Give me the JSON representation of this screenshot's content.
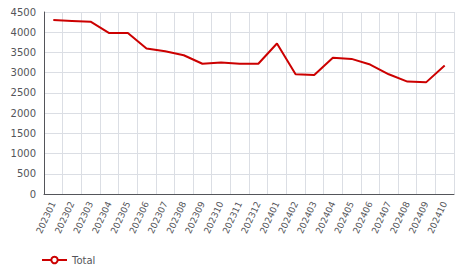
{
  "chart_data": {
    "type": "line",
    "categories": [
      "202301",
      "202302",
      "202303",
      "202304",
      "202305",
      "202306",
      "202307",
      "202308",
      "202309",
      "202310",
      "202311",
      "202312",
      "202401",
      "202402",
      "202403",
      "202404",
      "202405",
      "202406",
      "202407",
      "202408",
      "202409",
      "202410"
    ],
    "series": [
      {
        "name": "Total",
        "color": "#cc0000",
        "values": [
          4300,
          4280,
          4260,
          3980,
          3980,
          3600,
          3530,
          3430,
          3220,
          3250,
          3220,
          3220,
          3720,
          2960,
          2940,
          3370,
          3340,
          3200,
          2960,
          2780,
          2760,
          3180
        ]
      }
    ],
    "ylim": [
      0,
      4500
    ],
    "yticks": [
      0,
      500,
      1000,
      1500,
      2000,
      2500,
      3000,
      3500,
      4000,
      4500
    ],
    "grid": true,
    "legend": "lower left"
  }
}
